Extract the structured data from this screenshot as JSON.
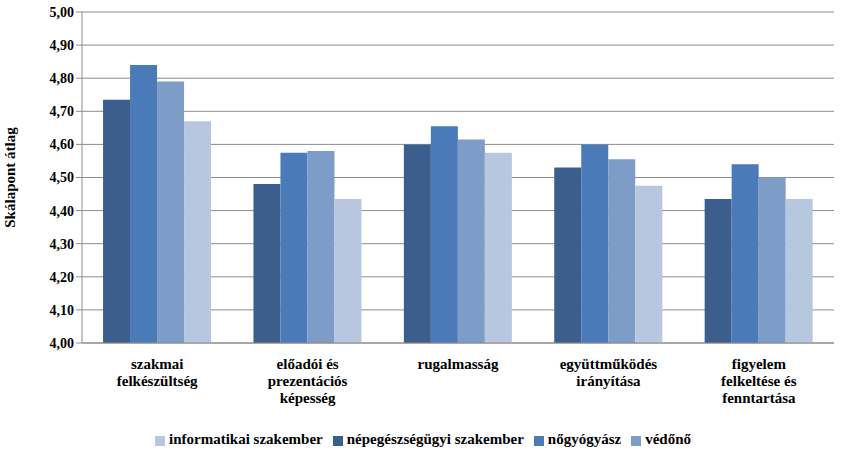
{
  "chart_data": {
    "type": "bar",
    "y_label": "Skálapont átlag",
    "categories": [
      "szakmai felkészültség",
      "előadói és prezentációs képesség",
      "rugalmasság",
      "együttműködés irányítása",
      "figyelem felkeltése és fenntartása"
    ],
    "series": [
      {
        "name": "népegészségügyi szakember",
        "color": "#3b5e8c",
        "values": [
          4.735,
          4.48,
          4.6,
          4.53,
          4.435
        ]
      },
      {
        "name": "nőgyógyász",
        "color": "#4a7ab8",
        "values": [
          4.84,
          4.575,
          4.655,
          4.6,
          4.54
        ]
      },
      {
        "name": "védőnő",
        "color": "#7e9cc8",
        "values": [
          4.79,
          4.58,
          4.615,
          4.555,
          4.5
        ]
      },
      {
        "name": "informatikai szakember",
        "color": "#b7c7e0",
        "values": [
          4.67,
          4.435,
          4.575,
          4.475,
          4.435
        ]
      }
    ],
    "ylim": [
      4,
      5
    ],
    "yticks": [
      {
        "value": 4,
        "label": "4,00"
      },
      {
        "value": 4.1,
        "label": "4,10"
      },
      {
        "value": 4.2,
        "label": "4,20"
      },
      {
        "value": 4.3,
        "label": "4,30"
      },
      {
        "value": 4.4,
        "label": "4,40"
      },
      {
        "value": 4.5,
        "label": "4,50"
      },
      {
        "value": 4.6,
        "label": "4,60"
      },
      {
        "value": 4.7,
        "label": "4,70"
      },
      {
        "value": 4.8,
        "label": "4,80"
      },
      {
        "value": 4.9,
        "label": "4,90"
      },
      {
        "value": 5,
        "label": "5,00"
      }
    ],
    "grid": true,
    "legend": "bottom"
  }
}
